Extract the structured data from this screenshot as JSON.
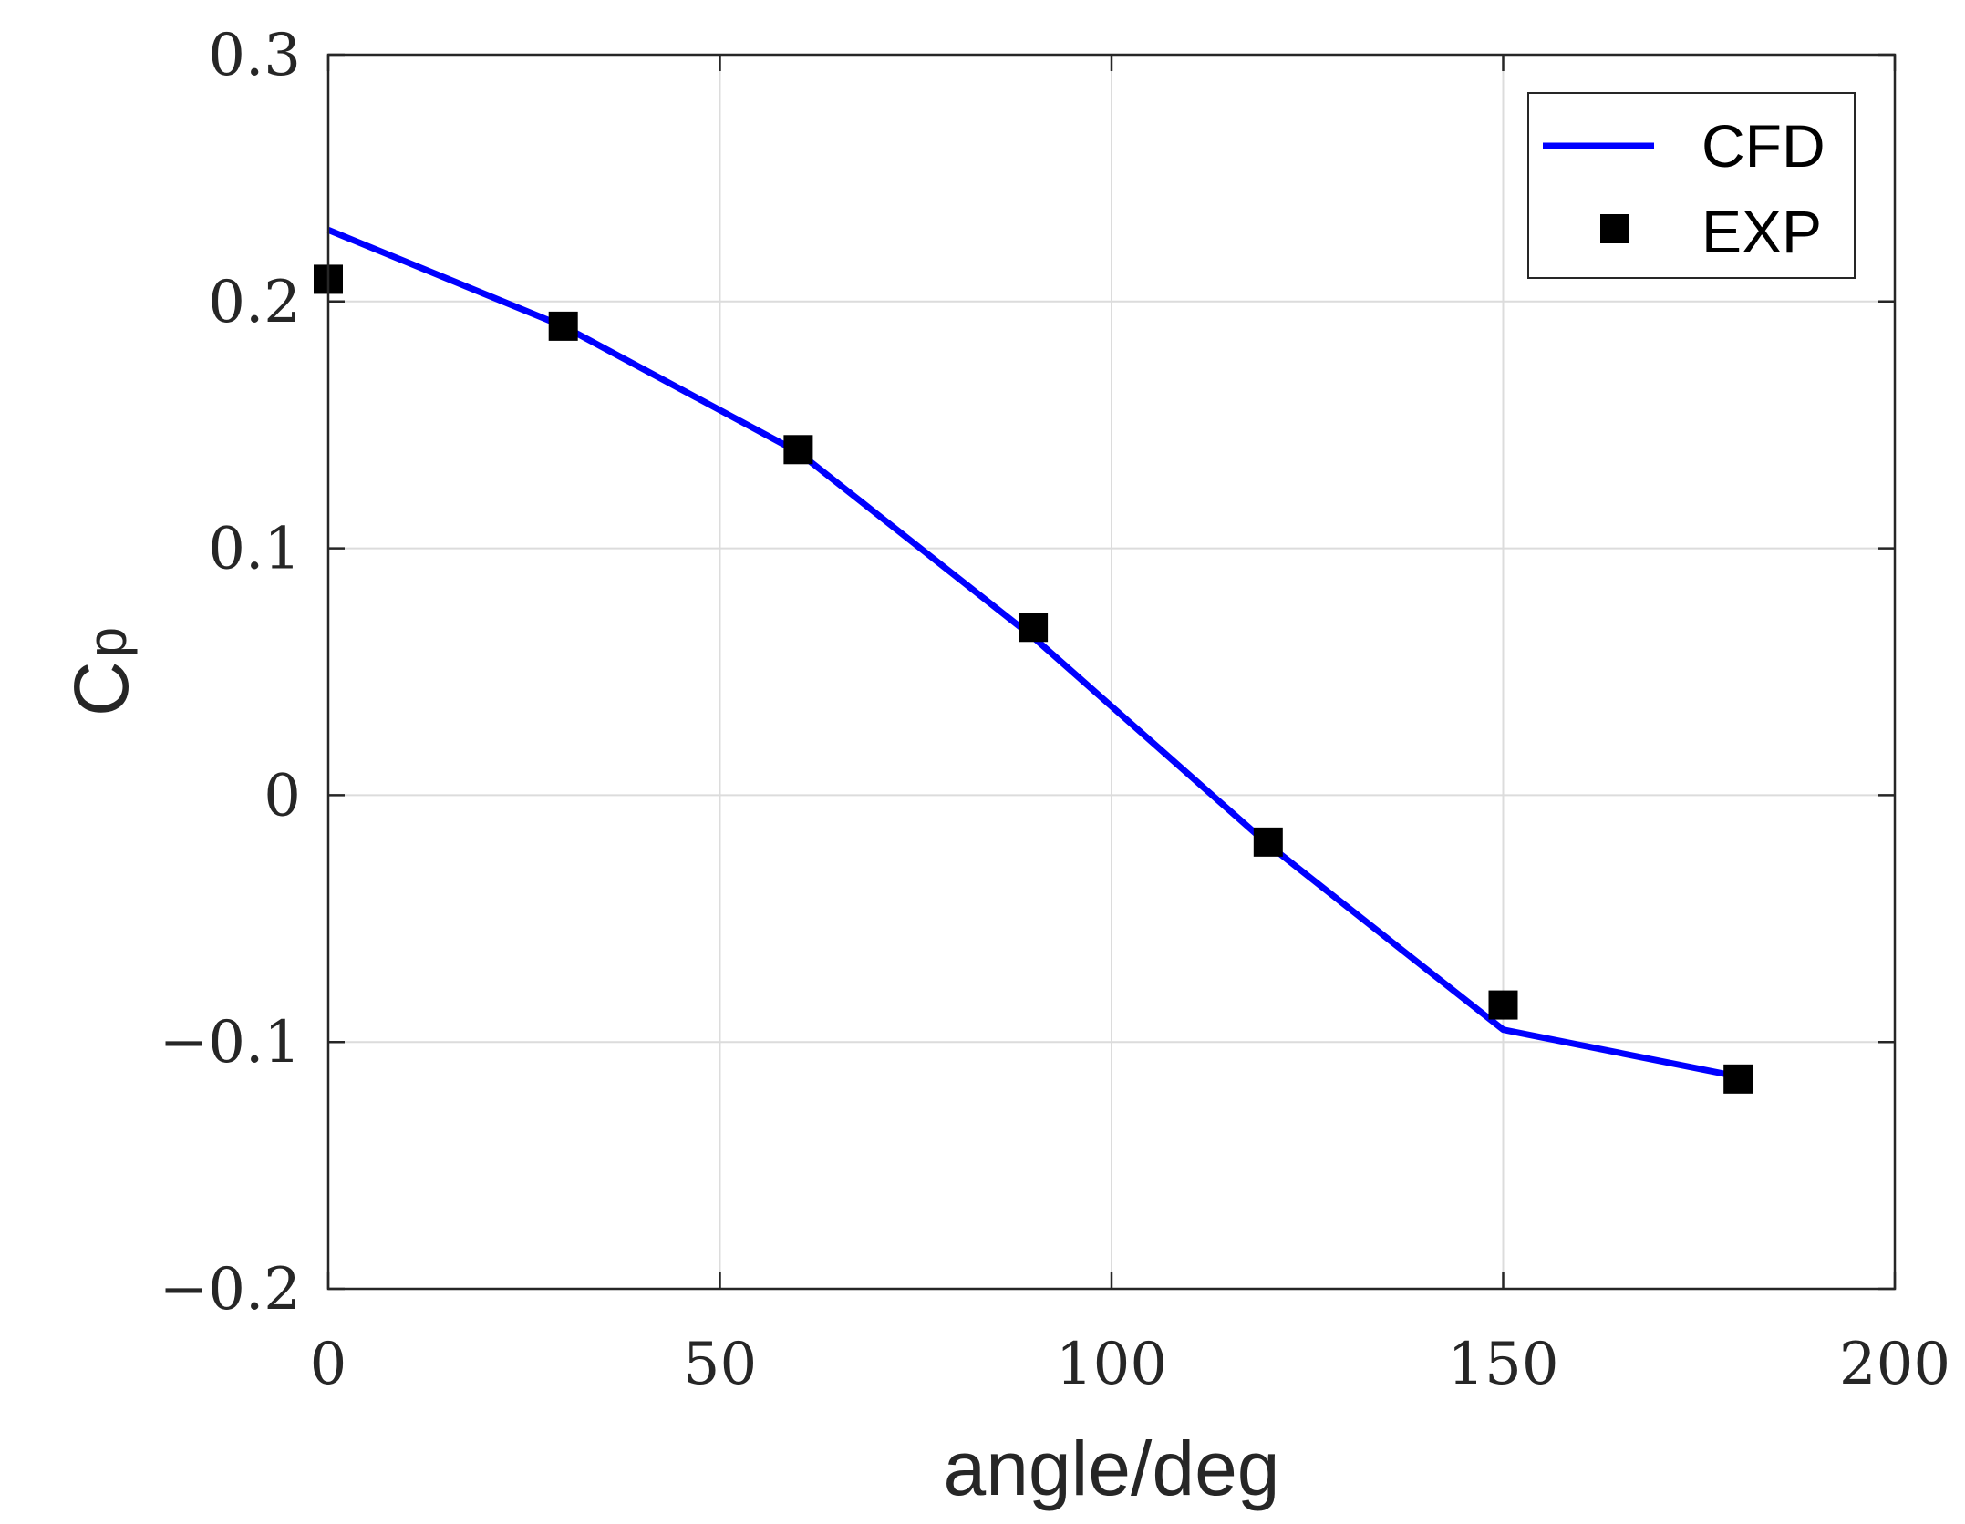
{
  "chart_data": {
    "type": "line",
    "xlabel": "angle/deg",
    "ylabel": {
      "base": "C",
      "subscript": "p"
    },
    "xlim": [
      0,
      200
    ],
    "ylim": [
      -0.2,
      0.3
    ],
    "grid": true,
    "x_ticks": [
      0,
      50,
      100,
      150,
      200
    ],
    "x_tick_labels": [
      "0",
      "50",
      "100",
      "150",
      "200"
    ],
    "y_ticks": [
      -0.2,
      -0.1,
      0,
      0.1,
      0.2,
      0.3
    ],
    "y_tick_labels": [
      "−0.2",
      "−0.1",
      "0",
      "0.1",
      "0.2",
      "0.3"
    ],
    "legend_position": "top-right",
    "series": [
      {
        "name": "CFD",
        "style": "line",
        "color": "#0000ff",
        "x": [
          0,
          30,
          60,
          90,
          120,
          150,
          180
        ],
        "y": [
          0.229,
          0.19,
          0.139,
          0.064,
          -0.02,
          -0.095,
          -0.114
        ]
      },
      {
        "name": "EXP",
        "style": "square-marker",
        "color": "#000000",
        "x": [
          0,
          30,
          60,
          90,
          120,
          150,
          180
        ],
        "y": [
          0.209,
          0.19,
          0.14,
          0.068,
          -0.019,
          -0.085,
          -0.115
        ]
      }
    ]
  }
}
